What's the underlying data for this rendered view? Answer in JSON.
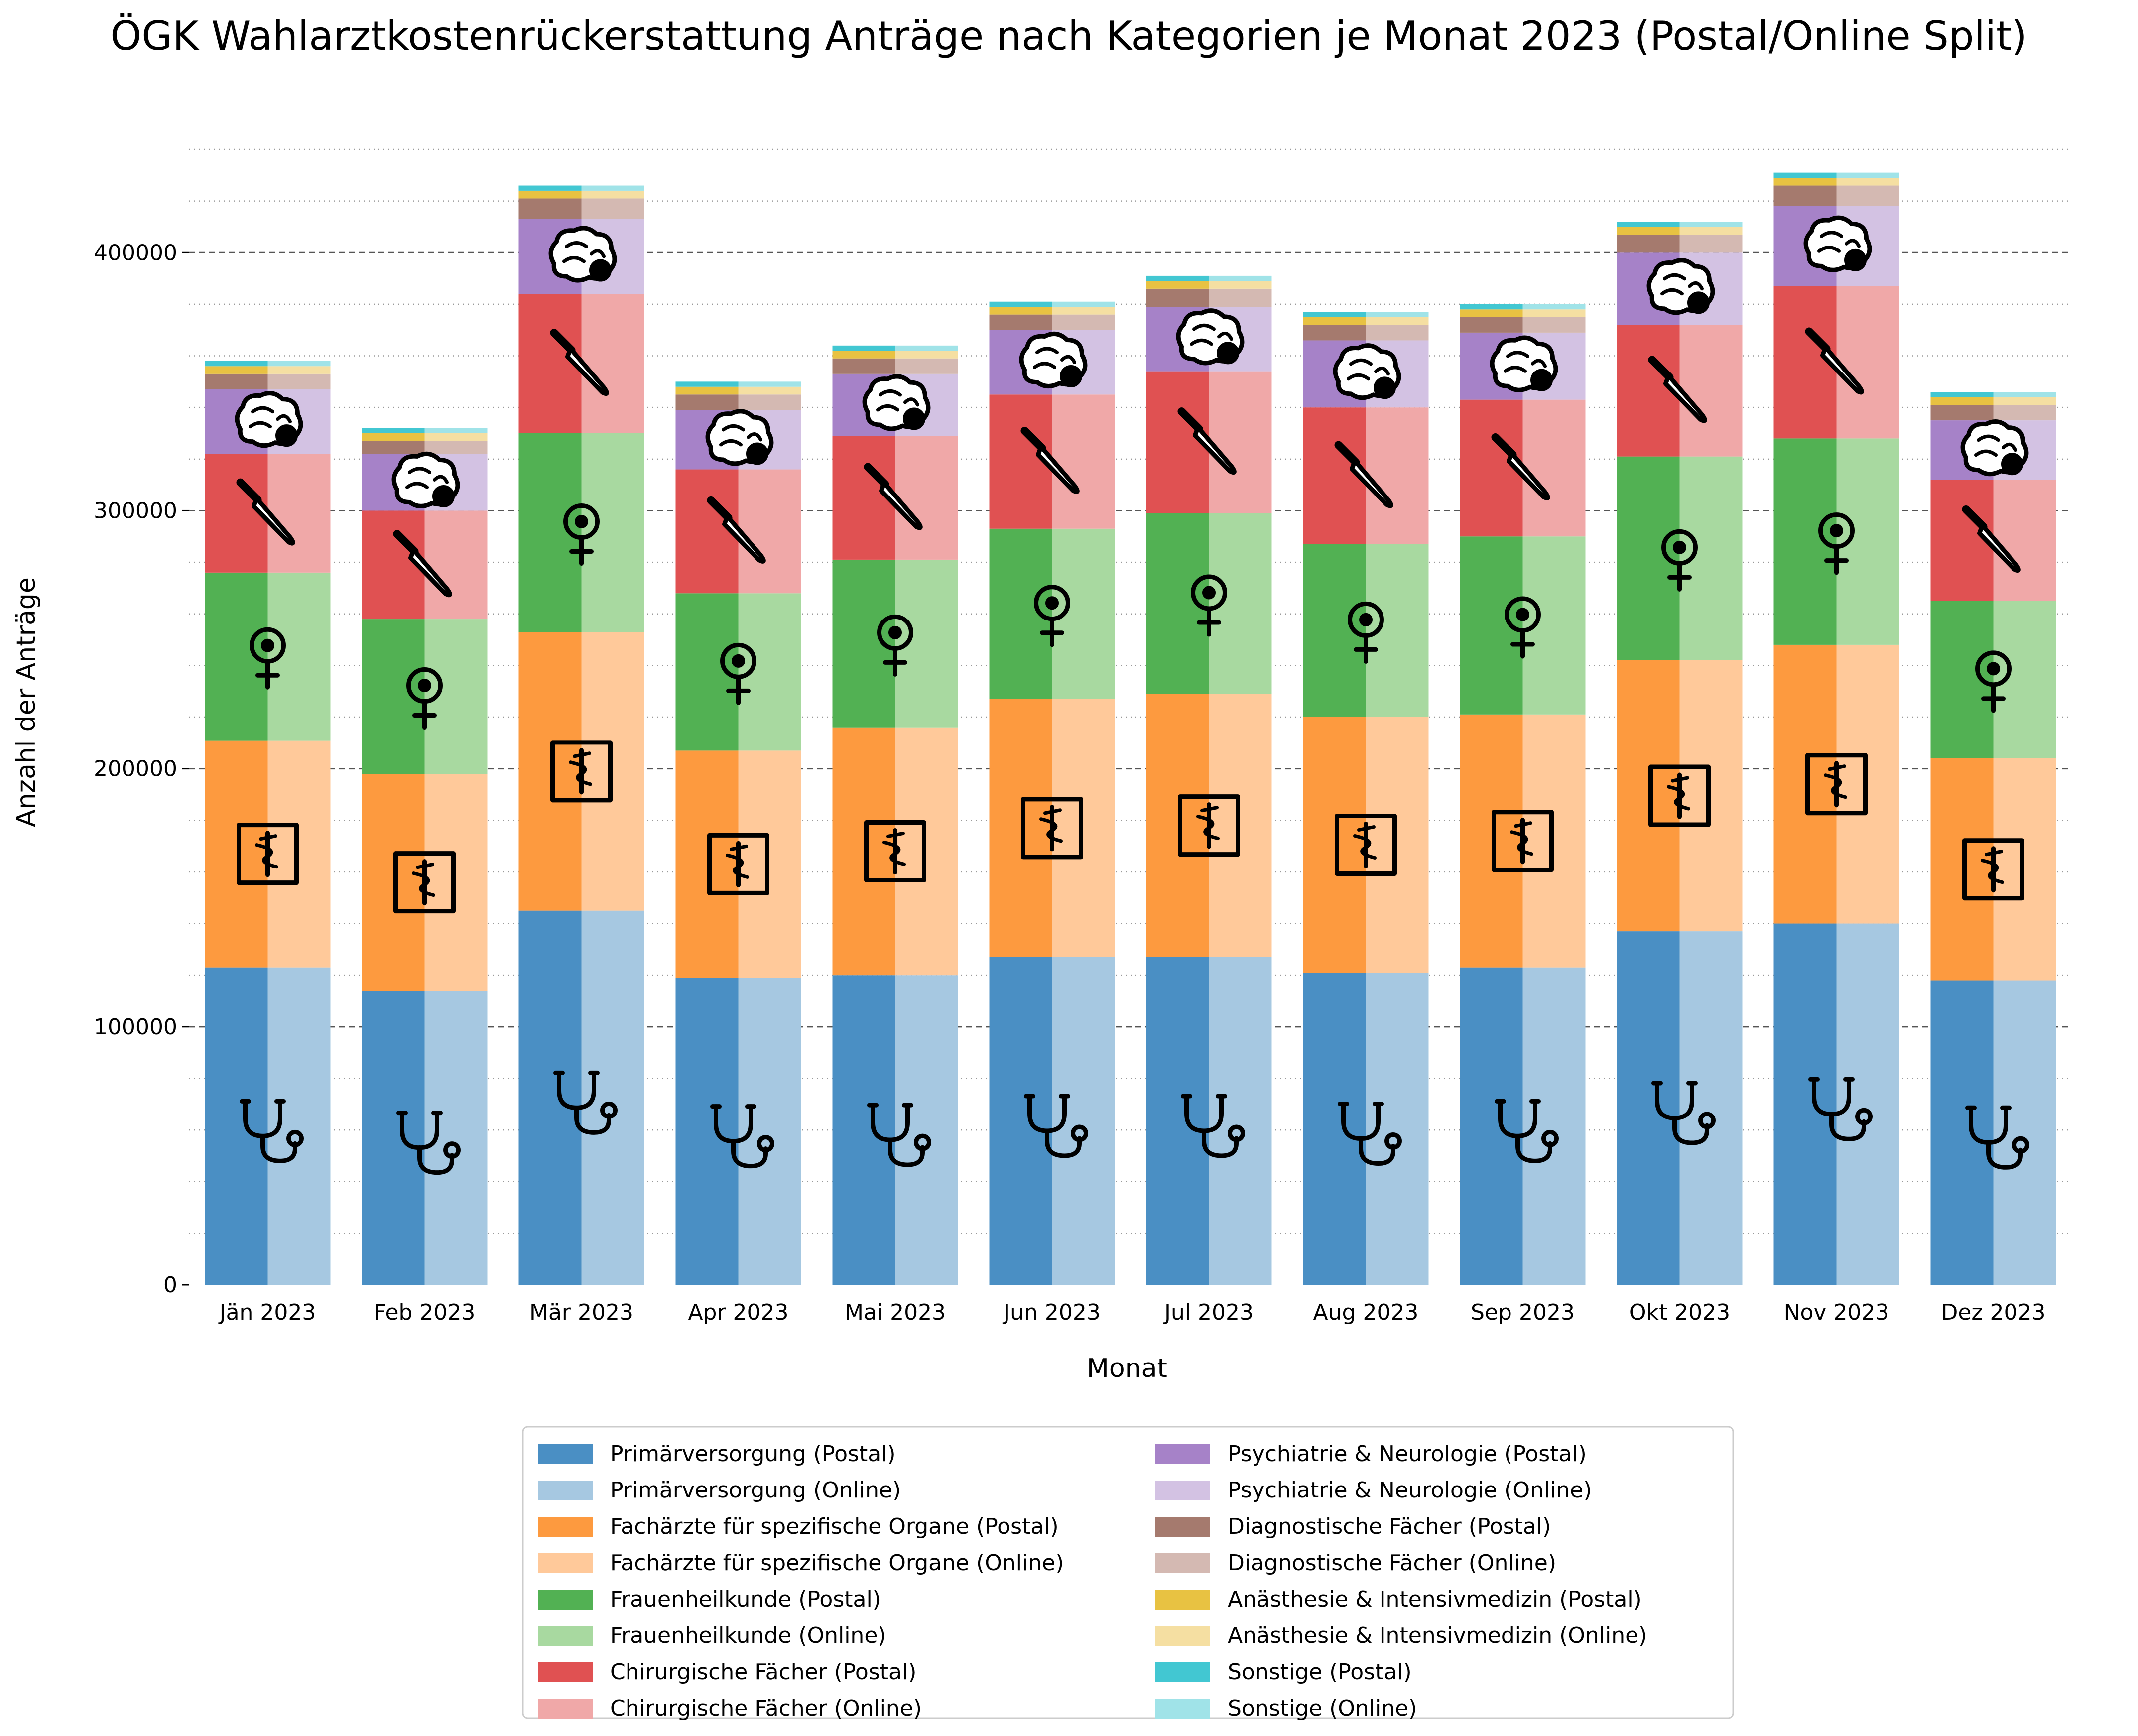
{
  "chart_data": {
    "type": "bar",
    "stacked": true,
    "title": "ÖGK Wahlarztkostenrückerstattung Anträge nach Kategorien je Monat 2023 (Postal/Online Split)",
    "xlabel": "Monat",
    "ylabel": "Anzahl der Anträge",
    "ylim": [
      0,
      440000
    ],
    "yticks": [
      0,
      100000,
      200000,
      300000,
      400000
    ],
    "grid": "horizontal major dashed, minor dotted",
    "legend_position": "bottom-center",
    "categories": [
      "Jän 2023",
      "Feb 2023",
      "Mär 2023",
      "Apr 2023",
      "Mai 2023",
      "Jun 2023",
      "Jul 2023",
      "Aug 2023",
      "Sep 2023",
      "Okt 2023",
      "Nov 2023",
      "Dez 2023"
    ],
    "groups": [
      {
        "name": "Primärversorgung",
        "icon": "stethoscope-icon",
        "postal_color": "#4a8fc4",
        "online_color": "#a6c8e1",
        "values": [
          123000,
          114000,
          145000,
          119000,
          120000,
          127000,
          127000,
          121000,
          123000,
          137000,
          140000,
          118000
        ]
      },
      {
        "name": "Fachärzte für spezifische Organe",
        "icon": "caduceus-icon",
        "postal_color": "#fd9a3f",
        "online_color": "#ffc99a",
        "values": [
          88000,
          84000,
          108000,
          88000,
          96000,
          100000,
          102000,
          99000,
          98000,
          105000,
          108000,
          86000
        ]
      },
      {
        "name": "Frauenheilkunde",
        "icon": "female-symbol-icon",
        "postal_color": "#52b153",
        "online_color": "#a8d9a0",
        "values": [
          65000,
          60000,
          77000,
          61000,
          65000,
          66000,
          70000,
          67000,
          69000,
          79000,
          80000,
          61000
        ]
      },
      {
        "name": "Chirurgische Fächer",
        "icon": "scalpel-icon",
        "postal_color": "#e05152",
        "online_color": "#f0a8a8",
        "values": [
          46000,
          42000,
          54000,
          48000,
          48000,
          52000,
          55000,
          53000,
          53000,
          51000,
          59000,
          47000
        ]
      },
      {
        "name": "Psychiatrie & Neurologie",
        "icon": "brain-icon",
        "postal_color": "#a682c8",
        "online_color": "#d3c2e3",
        "values": [
          25000,
          22000,
          29000,
          23000,
          24000,
          25000,
          25000,
          26000,
          26000,
          28000,
          31000,
          23000
        ]
      },
      {
        "name": "Diagnostische Fächer",
        "icon": "",
        "postal_color": "#a57a6e",
        "online_color": "#d4b9b2",
        "values": [
          6000,
          5000,
          8000,
          6000,
          6000,
          6000,
          7000,
          6000,
          6000,
          7000,
          8000,
          6000
        ]
      },
      {
        "name": "Anästhesie & Intensivmedizin",
        "icon": "",
        "postal_color": "#e8c242",
        "online_color": "#f5dfa2",
        "values": [
          3000,
          3000,
          3000,
          3000,
          3000,
          3000,
          3000,
          3000,
          3000,
          3000,
          3000,
          3000
        ]
      },
      {
        "name": "Sonstige",
        "icon": "",
        "postal_color": "#42c7d2",
        "online_color": "#a0e3e8",
        "values": [
          2000,
          2000,
          2000,
          2000,
          2000,
          2000,
          2000,
          2000,
          2000,
          2000,
          2000,
          2000
        ]
      }
    ],
    "series": [
      {
        "name": "Primärversorgung (Postal)",
        "color": "#4a8fc4"
      },
      {
        "name": "Primärversorgung (Online)",
        "color": "#a6c8e1"
      },
      {
        "name": "Fachärzte für spezifische Organe (Postal)",
        "color": "#fd9a3f"
      },
      {
        "name": "Fachärzte für spezifische Organe (Online)",
        "color": "#ffc99a"
      },
      {
        "name": "Frauenheilkunde (Postal)",
        "color": "#52b153"
      },
      {
        "name": "Frauenheilkunde (Online)",
        "color": "#a8d9a0"
      },
      {
        "name": "Chirurgische Fächer (Postal)",
        "color": "#e05152"
      },
      {
        "name": "Chirurgische Fächer (Online)",
        "color": "#f0a8a8"
      },
      {
        "name": "Psychiatrie & Neurologie (Postal)",
        "color": "#a682c8"
      },
      {
        "name": "Psychiatrie & Neurologie (Online)",
        "color": "#d3c2e3"
      },
      {
        "name": "Diagnostische Fächer (Postal)",
        "color": "#a57a6e"
      },
      {
        "name": "Diagnostische Fächer (Online)",
        "color": "#d4b9b2"
      },
      {
        "name": "Anästhesie & Intensivmedizin (Postal)",
        "color": "#e8c242"
      },
      {
        "name": "Anästhesie & Intensivmedizin (Online)",
        "color": "#f5dfa2"
      },
      {
        "name": "Sonstige (Postal)",
        "color": "#42c7d2"
      },
      {
        "name": "Sonstige (Online)",
        "color": "#a0e3e8"
      }
    ]
  }
}
